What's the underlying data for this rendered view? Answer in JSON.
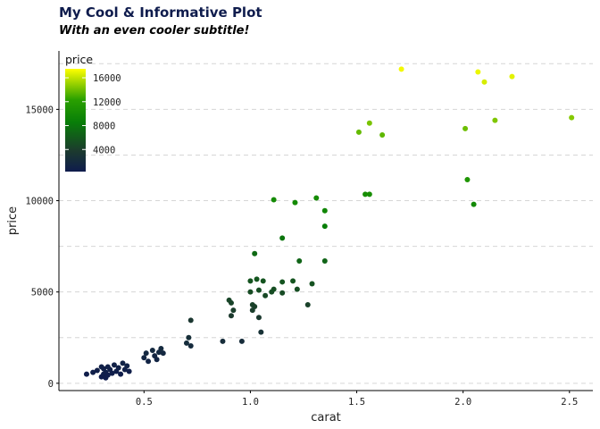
{
  "chart_data": {
    "type": "scatter",
    "title": "My Cool & Informative Plot",
    "subtitle": "With an even cooler subtitle!",
    "xlabel": "carat",
    "ylabel": "price",
    "xlim": [
      0.1,
      2.61
    ],
    "ylim": [
      -400,
      18200
    ],
    "x_ticks": [
      0.5,
      1.0,
      1.5,
      2.0,
      2.5
    ],
    "x_tick_labels": [
      "0.5",
      "1.0",
      "1.5",
      "2.0",
      "2.5"
    ],
    "y_ticks": [
      0,
      5000,
      10000,
      15000
    ],
    "y_tick_labels": [
      "0",
      "5000",
      "10000",
      "15000"
    ],
    "grid": "horizontal dashed",
    "legend": {
      "title": "price",
      "placement": "top-left",
      "labels": [
        "16000",
        "12000",
        "8000",
        "4000"
      ],
      "values": [
        16000,
        12000,
        8000,
        4000
      ],
      "range": [
        300,
        17500
      ]
    },
    "color_scale": {
      "variable": "price",
      "stops": [
        "#0f1c4d",
        "#1c3a2e",
        "#087e08",
        "#2aa000",
        "#ffff00"
      ],
      "stop_positions": [
        0,
        0.2,
        0.48,
        0.7,
        1
      ]
    },
    "points": [
      {
        "x": 0.23,
        "y": 500
      },
      {
        "x": 0.26,
        "y": 600
      },
      {
        "x": 0.28,
        "y": 700
      },
      {
        "x": 0.3,
        "y": 350
      },
      {
        "x": 0.3,
        "y": 900
      },
      {
        "x": 0.31,
        "y": 500
      },
      {
        "x": 0.31,
        "y": 800
      },
      {
        "x": 0.32,
        "y": 600
      },
      {
        "x": 0.32,
        "y": 300
      },
      {
        "x": 0.33,
        "y": 900
      },
      {
        "x": 0.33,
        "y": 450
      },
      {
        "x": 0.34,
        "y": 750
      },
      {
        "x": 0.35,
        "y": 550
      },
      {
        "x": 0.36,
        "y": 1000
      },
      {
        "x": 0.37,
        "y": 650
      },
      {
        "x": 0.38,
        "y": 850
      },
      {
        "x": 0.39,
        "y": 500
      },
      {
        "x": 0.4,
        "y": 1100
      },
      {
        "x": 0.41,
        "y": 750
      },
      {
        "x": 0.42,
        "y": 950
      },
      {
        "x": 0.43,
        "y": 650
      },
      {
        "x": 0.5,
        "y": 1400
      },
      {
        "x": 0.51,
        "y": 1650
      },
      {
        "x": 0.52,
        "y": 1200
      },
      {
        "x": 0.54,
        "y": 1800
      },
      {
        "x": 0.55,
        "y": 1500
      },
      {
        "x": 0.56,
        "y": 1300
      },
      {
        "x": 0.57,
        "y": 1700
      },
      {
        "x": 0.58,
        "y": 1900
      },
      {
        "x": 0.59,
        "y": 1650
      },
      {
        "x": 0.7,
        "y": 2200
      },
      {
        "x": 0.71,
        "y": 2500
      },
      {
        "x": 0.72,
        "y": 2050
      },
      {
        "x": 0.72,
        "y": 3450
      },
      {
        "x": 0.87,
        "y": 2300
      },
      {
        "x": 0.9,
        "y": 4550
      },
      {
        "x": 0.91,
        "y": 4400
      },
      {
        "x": 0.91,
        "y": 3700
      },
      {
        "x": 0.92,
        "y": 4000
      },
      {
        "x": 0.96,
        "y": 2300
      },
      {
        "x": 1.0,
        "y": 5600
      },
      {
        "x": 1.0,
        "y": 5000
      },
      {
        "x": 1.01,
        "y": 4300
      },
      {
        "x": 1.01,
        "y": 4000
      },
      {
        "x": 1.02,
        "y": 7100
      },
      {
        "x": 1.02,
        "y": 4200
      },
      {
        "x": 1.03,
        "y": 5700
      },
      {
        "x": 1.04,
        "y": 3600
      },
      {
        "x": 1.04,
        "y": 5100
      },
      {
        "x": 1.05,
        "y": 2800
      },
      {
        "x": 1.06,
        "y": 5600
      },
      {
        "x": 1.07,
        "y": 4800
      },
      {
        "x": 1.1,
        "y": 5000
      },
      {
        "x": 1.11,
        "y": 10050
      },
      {
        "x": 1.11,
        "y": 5150
      },
      {
        "x": 1.15,
        "y": 5550
      },
      {
        "x": 1.15,
        "y": 4950
      },
      {
        "x": 1.15,
        "y": 7950
      },
      {
        "x": 1.2,
        "y": 5600
      },
      {
        "x": 1.21,
        "y": 9900
      },
      {
        "x": 1.22,
        "y": 5150
      },
      {
        "x": 1.23,
        "y": 6700
      },
      {
        "x": 1.27,
        "y": 4300
      },
      {
        "x": 1.29,
        "y": 5450
      },
      {
        "x": 1.31,
        "y": 10150
      },
      {
        "x": 1.35,
        "y": 9450
      },
      {
        "x": 1.35,
        "y": 8600
      },
      {
        "x": 1.35,
        "y": 6700
      },
      {
        "x": 1.51,
        "y": 13750
      },
      {
        "x": 1.54,
        "y": 10350
      },
      {
        "x": 1.56,
        "y": 14250
      },
      {
        "x": 1.56,
        "y": 10350
      },
      {
        "x": 1.62,
        "y": 13600
      },
      {
        "x": 1.71,
        "y": 17200
      },
      {
        "x": 2.01,
        "y": 13950
      },
      {
        "x": 2.02,
        "y": 11150
      },
      {
        "x": 2.05,
        "y": 9800
      },
      {
        "x": 2.07,
        "y": 17050
      },
      {
        "x": 2.1,
        "y": 16500
      },
      {
        "x": 2.15,
        "y": 14400
      },
      {
        "x": 2.23,
        "y": 16800
      },
      {
        "x": 2.51,
        "y": 14550
      }
    ]
  }
}
